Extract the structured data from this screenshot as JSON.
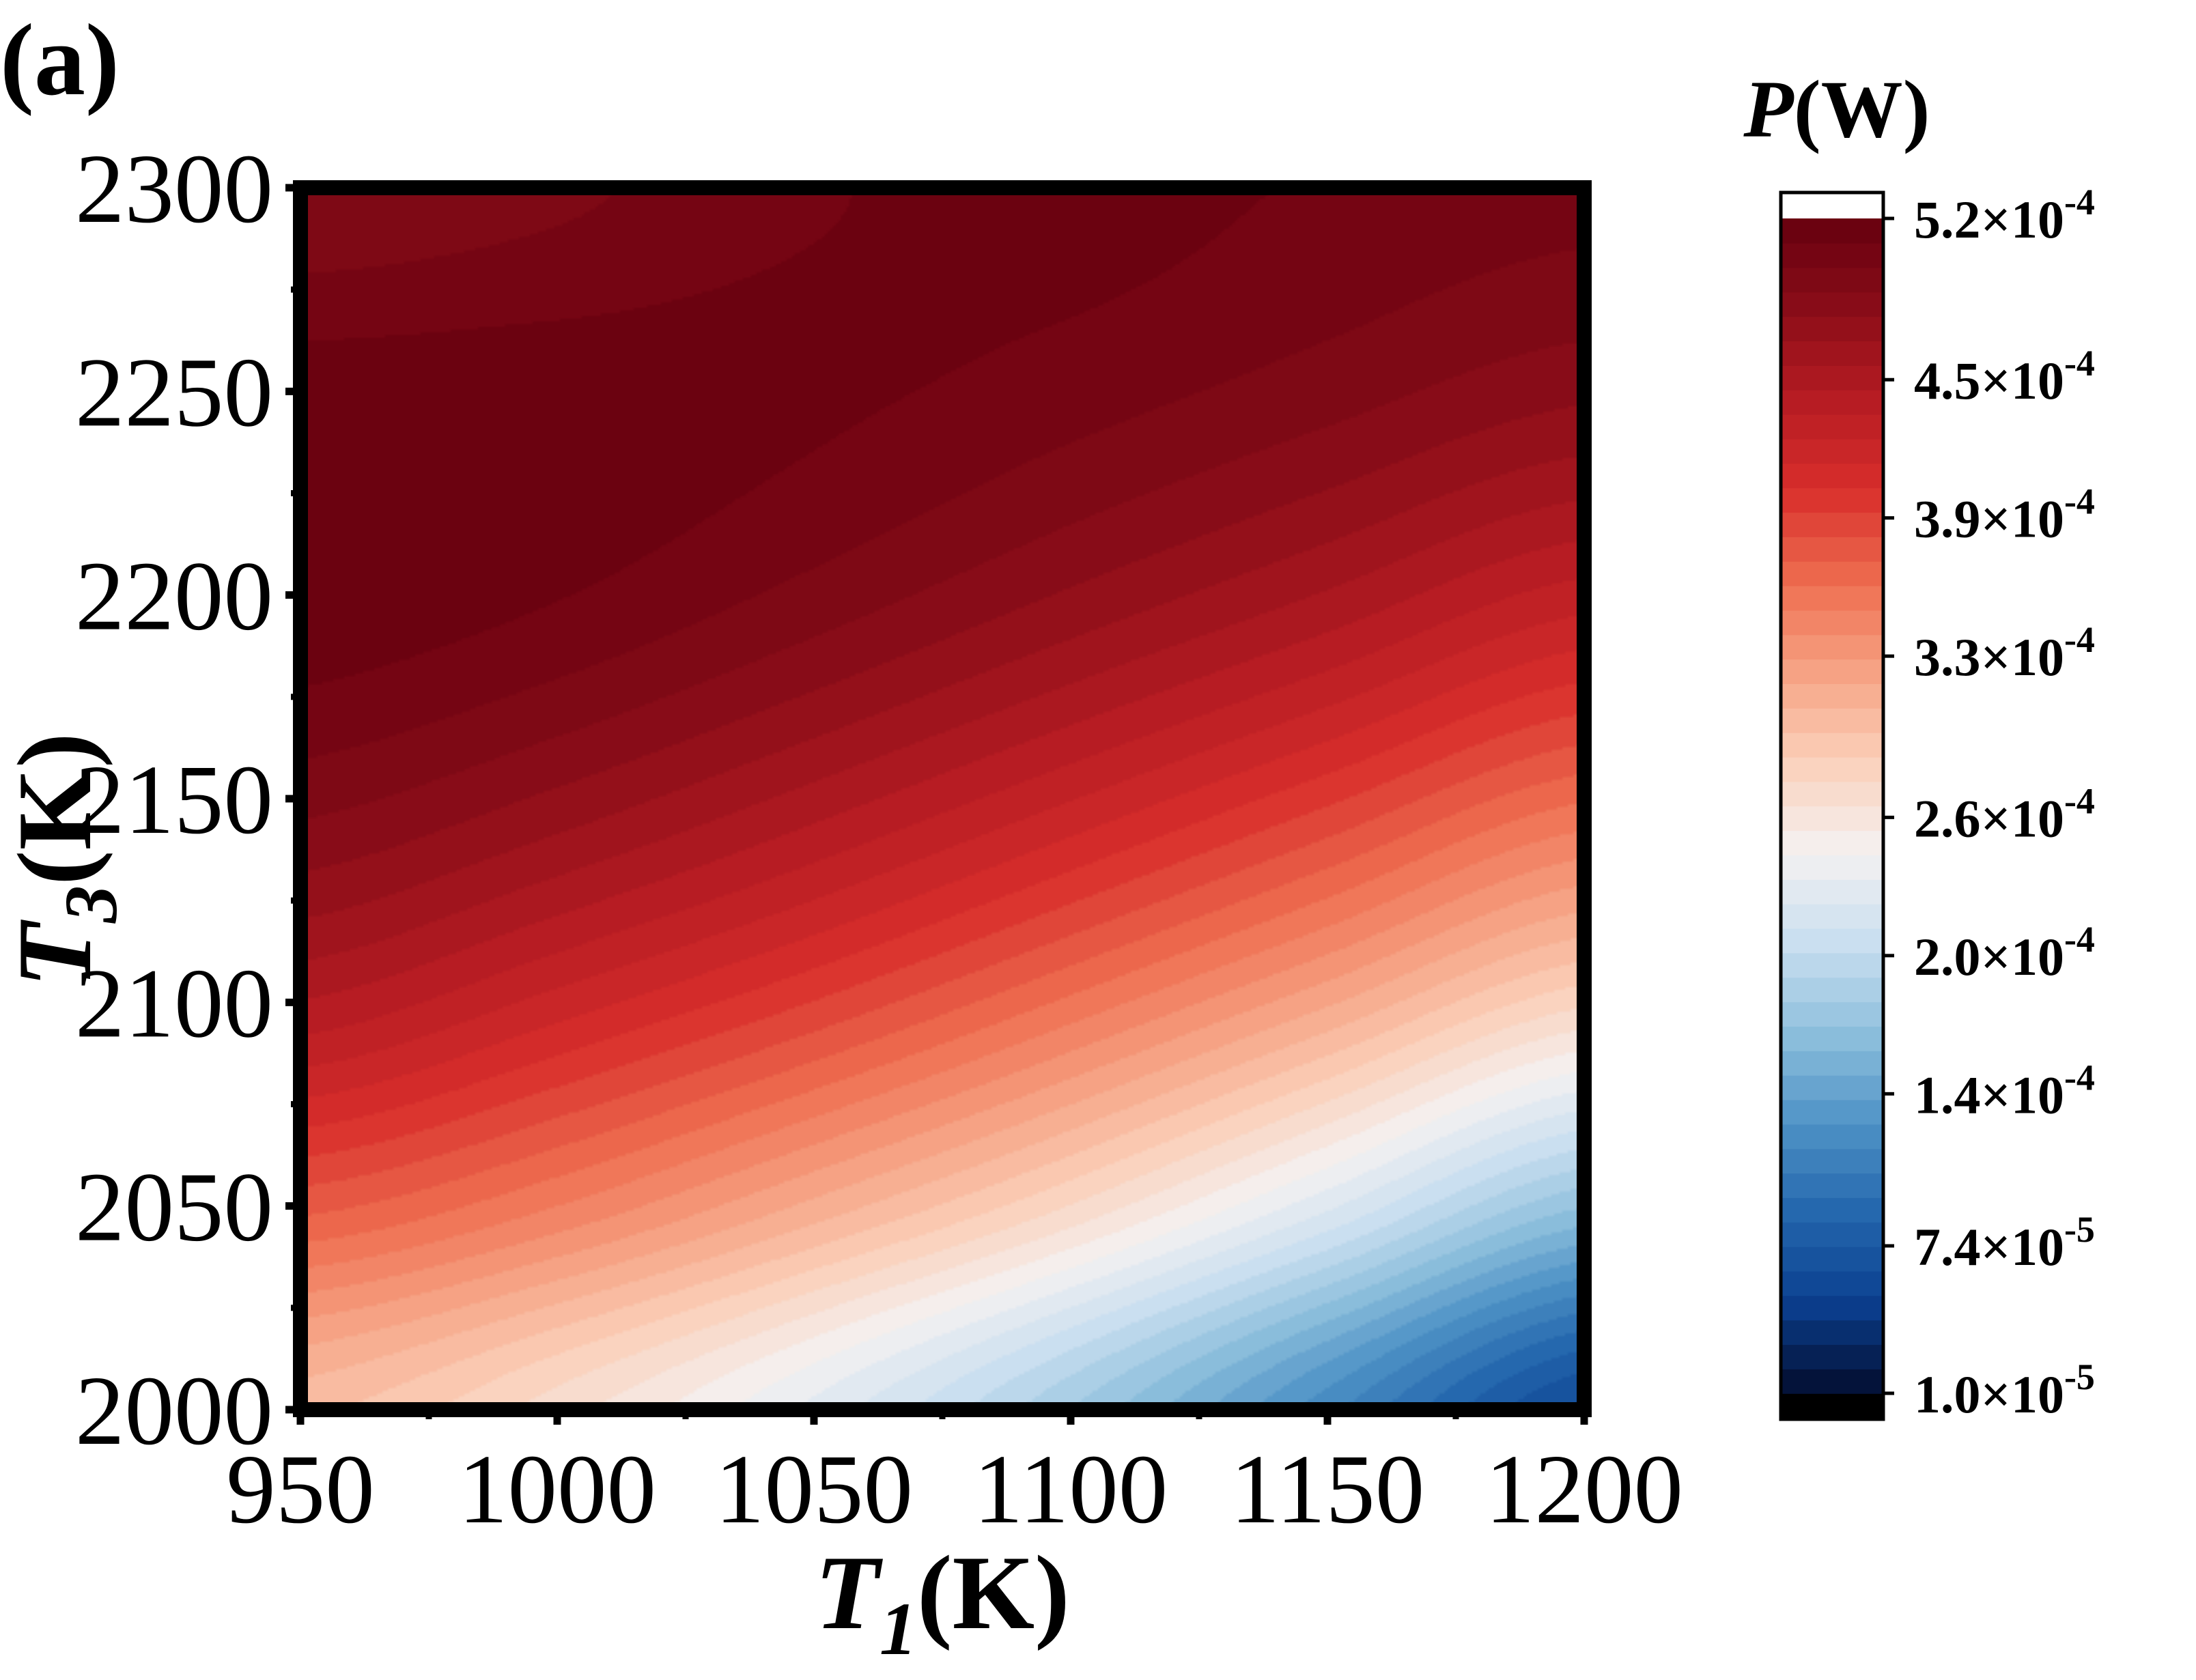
{
  "panel_label": "(a)",
  "chart_data": {
    "type": "heatmap",
    "subtype": "filled-contour",
    "xlabel": {
      "symbol": "T",
      "subscript": "1",
      "unit": "(K)"
    },
    "ylabel": {
      "symbol": "T",
      "subscript": "3",
      "unit": "(K)"
    },
    "xlim": [
      950,
      1200
    ],
    "ylim": [
      2000,
      2300
    ],
    "xticks": [
      "950",
      "1000",
      "1050",
      "1100",
      "1150",
      "1200"
    ],
    "yticks": [
      "2000",
      "2050",
      "2100",
      "2150",
      "2200",
      "2250",
      "2300"
    ],
    "colorbar": {
      "title": {
        "symbol": "P",
        "unit": "(W)"
      },
      "min": 1e-05,
      "max": 0.00052,
      "levels": 48,
      "tick_labels": [
        {
          "value": 1e-05,
          "mantissa": "1.0×10",
          "exp": "-5"
        },
        {
          "value": 7.4e-05,
          "mantissa": "7.4×10",
          "exp": "-5"
        },
        {
          "value": 0.00014,
          "mantissa": "1.4×10",
          "exp": "-4"
        },
        {
          "value": 0.0002,
          "mantissa": "2.0×10",
          "exp": "-4"
        },
        {
          "value": 0.00026,
          "mantissa": "2.6×10",
          "exp": "-4"
        },
        {
          "value": 0.00033,
          "mantissa": "3.3×10",
          "exp": "-4"
        },
        {
          "value": 0.00039,
          "mantissa": "3.9×10",
          "exp": "-4"
        },
        {
          "value": 0.00045,
          "mantissa": "4.5×10",
          "exp": "-4"
        },
        {
          "value": 0.00052,
          "mantissa": "5.2×10",
          "exp": "-4"
        }
      ],
      "colormap_stops": [
        "#030c2d",
        "#0b3f8f",
        "#2467ad",
        "#4f93c6",
        "#8fc0dd",
        "#cadff0",
        "#f4f1f1",
        "#fbd0ba",
        "#f6a283",
        "#ee6c4f",
        "#d82e2b",
        "#b61b23",
        "#8a0d18",
        "#66000f"
      ],
      "under_color": "#000000",
      "over_color": "#ffffff"
    },
    "grid": false,
    "field_samples": {
      "x": [
        950,
        1000,
        1050,
        1100,
        1150,
        1200
      ],
      "y": [
        2000,
        2050,
        2100,
        2150,
        2200,
        2250,
        2300
      ],
      "P": [
        [
          0.0003,
          0.00027,
          0.00023,
          0.00018,
          0.00012,
          6e-05
        ],
        [
          0.000375,
          0.00035,
          0.000315,
          0.000275,
          0.000225,
          0.00017
        ],
        [
          0.000445,
          0.00042,
          0.000392,
          0.000358,
          0.00032,
          0.000278
        ],
        [
          0.000492,
          0.000475,
          0.000452,
          0.000425,
          0.000395,
          0.000362
        ],
        [
          0.000518,
          0.00051,
          0.000495,
          0.000476,
          0.000455,
          0.00043
        ],
        [
          0.000515,
          0.000515,
          0.000512,
          0.000504,
          0.000493,
          0.00048
        ],
        [
          0.000488,
          0.000496,
          0.000508,
          0.000514,
          0.000508,
          0.000503
        ]
      ]
    }
  }
}
